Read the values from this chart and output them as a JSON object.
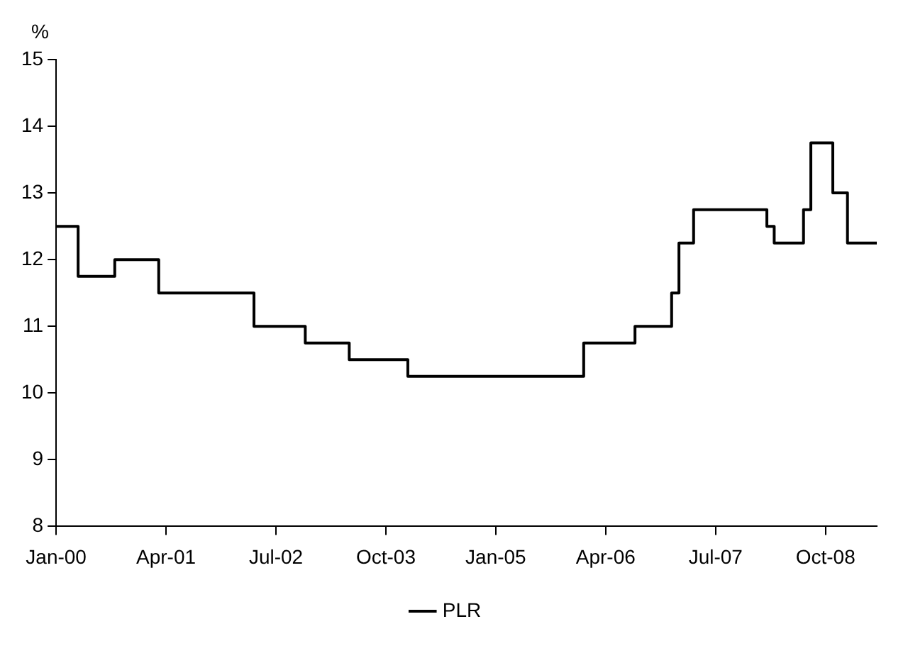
{
  "chart_data": {
    "type": "step",
    "ylabel": "%",
    "x": [
      "2000-01",
      "2000-04",
      "2000-09",
      "2001-03",
      "2002-04",
      "2002-11",
      "2003-05",
      "2004-01",
      "2006-01",
      "2006-08",
      "2007-01",
      "2007-02",
      "2007-04",
      "2008-02",
      "2008-03",
      "2008-07",
      "2008-08",
      "2008-11",
      "2009-01",
      "2009-05"
    ],
    "series": [
      {
        "name": "PLR",
        "color": "#000000",
        "values": [
          12.5,
          11.75,
          12,
          11.5,
          11,
          10.75,
          10.5,
          10.25,
          10.75,
          11,
          11.5,
          12.25,
          12.75,
          12.5,
          12.25,
          12.75,
          13.75,
          13,
          12.25,
          12.25
        ]
      }
    ],
    "xlim": [
      "2000-01",
      "2009-05"
    ],
    "xticks": [
      {
        "value": "2000-01",
        "label": "Jan-00"
      },
      {
        "value": "2001-04",
        "label": "Apr-01"
      },
      {
        "value": "2002-07",
        "label": "Jul-02"
      },
      {
        "value": "2003-10",
        "label": "Oct-03"
      },
      {
        "value": "2005-01",
        "label": "Jan-05"
      },
      {
        "value": "2006-04",
        "label": "Apr-06"
      },
      {
        "value": "2007-07",
        "label": "Jul-07"
      },
      {
        "value": "2008-10",
        "label": "Oct-08"
      }
    ],
    "ylim": [
      8,
      15
    ],
    "yticks": [
      8,
      9,
      10,
      11,
      12,
      13,
      14,
      15
    ],
    "grid": false,
    "legend": "bottom",
    "line_style": "solid",
    "marker": "none"
  }
}
